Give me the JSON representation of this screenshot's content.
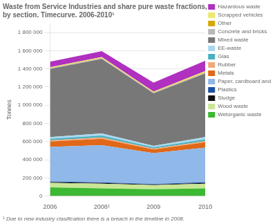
{
  "chart_data": {
    "type": "area",
    "stacked": true,
    "title": "Waste from Service Industries and share pure waste fractions,\nby section. Timecurve. 2006-2010¹",
    "footnote": "¹ Due to new industry clasification there is a breach in the timeline in 2008.",
    "y_label": "Tonnes",
    "categories": [
      "2006",
      "2008¹",
      "2009",
      "2010"
    ],
    "series": [
      {
        "name": "Wetorganic waste",
        "color": "#3cb832",
        "values": [
          95000,
          85000,
          75000,
          85000
        ]
      },
      {
        "name": "Wood waste",
        "color": "#c8e696",
        "values": [
          50000,
          50000,
          45000,
          50000
        ]
      },
      {
        "name": "Sludge",
        "color": "#101010",
        "values": [
          8000,
          8000,
          6000,
          8000
        ]
      },
      {
        "name": "Plastics",
        "color": "#1a50a0",
        "values": [
          8000,
          8000,
          6000,
          10000
        ]
      },
      {
        "name": "Paper, cardboard and pasteboard",
        "color": "#90b8e8",
        "values": [
          380000,
          410000,
          340000,
          380000
        ]
      },
      {
        "name": "Metals",
        "color": "#e06818",
        "values": [
          60000,
          70000,
          40000,
          60000
        ]
      },
      {
        "name": "Rubber",
        "color": "#f0a878",
        "values": [
          12000,
          14000,
          10000,
          12000
        ]
      },
      {
        "name": "Glas",
        "color": "#48b0c0",
        "values": [
          18000,
          22000,
          15000,
          20000
        ]
      },
      {
        "name": "EE-waste",
        "color": "#a8d8f0",
        "values": [
          18000,
          22000,
          15000,
          25000
        ]
      },
      {
        "name": "Mixed waste",
        "color": "#787878",
        "values": [
          750000,
          820000,
          580000,
          700000
        ]
      },
      {
        "name": "Concrete and bricks",
        "color": "#b8b8b8",
        "values": [
          8000,
          8000,
          6000,
          8000
        ]
      },
      {
        "name": "Other",
        "color": "#d4a800",
        "values": [
          4000,
          4000,
          4000,
          6000
        ]
      },
      {
        "name": "Scrapped vehicles",
        "color": "#ece870",
        "values": [
          8000,
          10000,
          8000,
          12000
        ]
      },
      {
        "name": "Hazardous waste",
        "color": "#b030c0",
        "values": [
          60000,
          65000,
          100000,
          115000
        ]
      }
    ],
    "ylim": [
      0,
      1900000
    ],
    "yticks": [
      0,
      {
        "value": 200000,
        "label": "200 000"
      },
      {
        "value": 400000,
        "label": "400 000"
      },
      {
        "value": 600000,
        "label": "600 000"
      },
      {
        "value": 800000,
        "label": "800 000"
      },
      {
        "value": 1000000,
        "label": "1 000 000"
      },
      {
        "value": 1200000,
        "label": "1 200 000"
      },
      {
        "value": 1400000,
        "label": "1 400 000"
      },
      {
        "value": 1600000,
        "label": "1 600 000"
      },
      {
        "value": 1800000,
        "label": "1 800 000"
      }
    ],
    "grid": "y",
    "legend": "right"
  }
}
